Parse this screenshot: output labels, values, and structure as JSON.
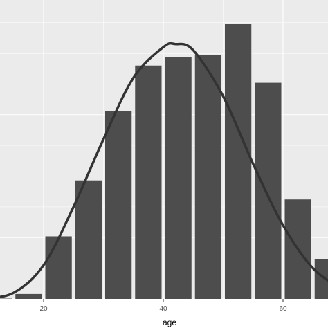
{
  "chart_data": {
    "type": "bar",
    "title": "",
    "xlabel": "age",
    "ylabel": "",
    "bin_width": 5,
    "bins": [
      {
        "x0": 10,
        "x1": 15,
        "value": 0.05
      },
      {
        "x0": 15,
        "x1": 20,
        "value": 0.8
      },
      {
        "x0": 20,
        "x1": 25,
        "value": 10.2
      },
      {
        "x0": 25,
        "x1": 30,
        "value": 19.3
      },
      {
        "x0": 30,
        "x1": 35,
        "value": 30.6
      },
      {
        "x0": 35,
        "x1": 40,
        "value": 38.0
      },
      {
        "x0": 40,
        "x1": 45,
        "value": 39.4
      },
      {
        "x0": 45,
        "x1": 50,
        "value": 39.7
      },
      {
        "x0": 50,
        "x1": 55,
        "value": 44.8
      },
      {
        "x0": 55,
        "x1": 60,
        "value": 35.2
      },
      {
        "x0": 60,
        "x1": 65,
        "value": 16.2
      },
      {
        "x0": 65,
        "x1": 70,
        "value": 6.5
      }
    ],
    "density_curve": {
      "x": [
        10,
        15,
        20,
        25,
        30,
        35,
        40,
        42,
        45,
        50,
        55,
        60,
        65,
        70
      ],
      "y": [
        0.05,
        1.0,
        5.5,
        15.0,
        26.0,
        36.0,
        41.0,
        41.5,
        40.5,
        33.0,
        22.0,
        12.0,
        5.0,
        1.5
      ]
    },
    "xlim": [
      10,
      68
    ],
    "ylim": [
      0,
      48
    ],
    "x_ticks": [
      20,
      40,
      60
    ],
    "x_tick_labels": [
      "20",
      "40",
      "60"
    ],
    "y_ticks": [
      0,
      10,
      20,
      30,
      40
    ],
    "show_y_tick_labels": false,
    "grid": true,
    "colors": {
      "panel_background": "#ebebeb",
      "grid_major": "#ffffff",
      "bar_fill": "#4d4d4d",
      "curve": "#333333"
    }
  }
}
